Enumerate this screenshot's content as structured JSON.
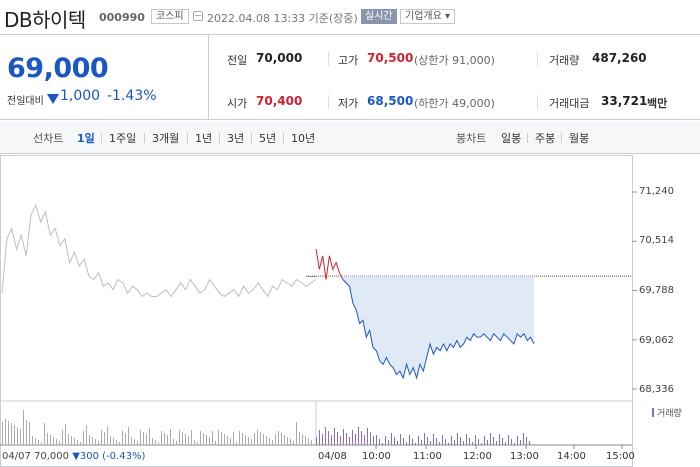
{
  "header": {
    "name": "DB하이텍",
    "code": "000990",
    "market": "코스피",
    "datetime": "2022.04.08 13:33 기준(장중)",
    "realtime": "실시간",
    "company_info": "기업개요 ▾"
  },
  "quote": {
    "price": "69,000",
    "change_label": "전일대비",
    "change_value": "1,000",
    "change_pct": "-1.43%",
    "rows": [
      [
        {
          "label": "전일",
          "value": "70,000",
          "tone": "flat",
          "sub": ""
        },
        {
          "label": "고가",
          "value": "70,500",
          "tone": "up",
          "sub": "(상한가 91,000)"
        },
        {
          "label": "거래량",
          "value": "487,260",
          "tone": "flat",
          "sub": ""
        }
      ],
      [
        {
          "label": "시가",
          "value": "70,400",
          "tone": "up",
          "sub": ""
        },
        {
          "label": "저가",
          "value": "68,500",
          "tone": "down",
          "sub": "(하한가 49,000)"
        },
        {
          "label": "거래대금",
          "value": "33,721",
          "tone": "flat",
          "sub": "백만"
        }
      ]
    ]
  },
  "periods": {
    "line_label": "선차트",
    "line_items": [
      "1일",
      "1주일",
      "3개월",
      "1년",
      "3년",
      "5년",
      "10년"
    ],
    "active": "1일",
    "candle_label": "봉차트",
    "candle_items": [
      "일봉",
      "주봉",
      "월봉"
    ]
  },
  "chart_data": {
    "type": "line",
    "y_ticks": [
      "71,240",
      "70,514",
      "69,788",
      "69,062",
      "68,336"
    ],
    "ylim": [
      68336,
      71240
    ],
    "x_ticks": [
      "04/07",
      "04/08",
      "10:00",
      "11:00",
      "12:00",
      "13:00",
      "14:00",
      "15:00"
    ],
    "volume_label": "거래량",
    "prev_day_info": {
      "date": "04/07",
      "close": "70,000",
      "change": "▼300",
      "pct": "(-0.43%)"
    },
    "prev_close": 70000,
    "series": [
      {
        "day": "04/07",
        "values": [
          69750,
          70550,
          70700,
          70400,
          70600,
          70300,
          70900,
          71050,
          70800,
          70950,
          70600,
          70700,
          70450,
          70550,
          70200,
          70350,
          70150,
          70250,
          70000,
          69950,
          70050,
          69850,
          69900,
          69800,
          69950,
          69900,
          69750,
          69850,
          69800,
          69700,
          69750,
          69700,
          69700,
          69750,
          69800,
          69700,
          69800,
          69900,
          69800,
          69950,
          69850,
          69750,
          69800,
          69950,
          69850,
          69750,
          69700,
          69750,
          69800,
          69700,
          69850,
          69750,
          69800,
          69900,
          69800,
          69700,
          69850,
          69800,
          69950,
          69900,
          69850,
          69950,
          69900,
          69850,
          69900,
          69950
        ]
      },
      {
        "day": "04/08",
        "values": [
          70400,
          70100,
          70300,
          69950,
          70300,
          70100,
          70200,
          70050,
          69950,
          69900,
          69850,
          69600,
          69500,
          69300,
          69350,
          69100,
          69200,
          68950,
          68900,
          68750,
          68700,
          68800,
          68700,
          68650,
          68550,
          68600,
          68500,
          68700,
          68550,
          68650,
          68500,
          68700,
          68600,
          68800,
          69000,
          68850,
          68950,
          68900,
          69000,
          68900,
          69000,
          68950,
          69050,
          68950,
          69000,
          69100,
          69050,
          69150,
          69100,
          69100,
          69150,
          69100,
          69050,
          69150,
          69100,
          69050,
          69150,
          69100,
          69050,
          69000,
          69150,
          69100,
          69150,
          69050,
          69100,
          69000
        ]
      }
    ]
  },
  "colors": {
    "up": "#d2202f",
    "down": "#1a56c4",
    "prev_line": "#bdbdbd",
    "fill": "#dbe6f6",
    "volume": "#8a6cc7"
  }
}
